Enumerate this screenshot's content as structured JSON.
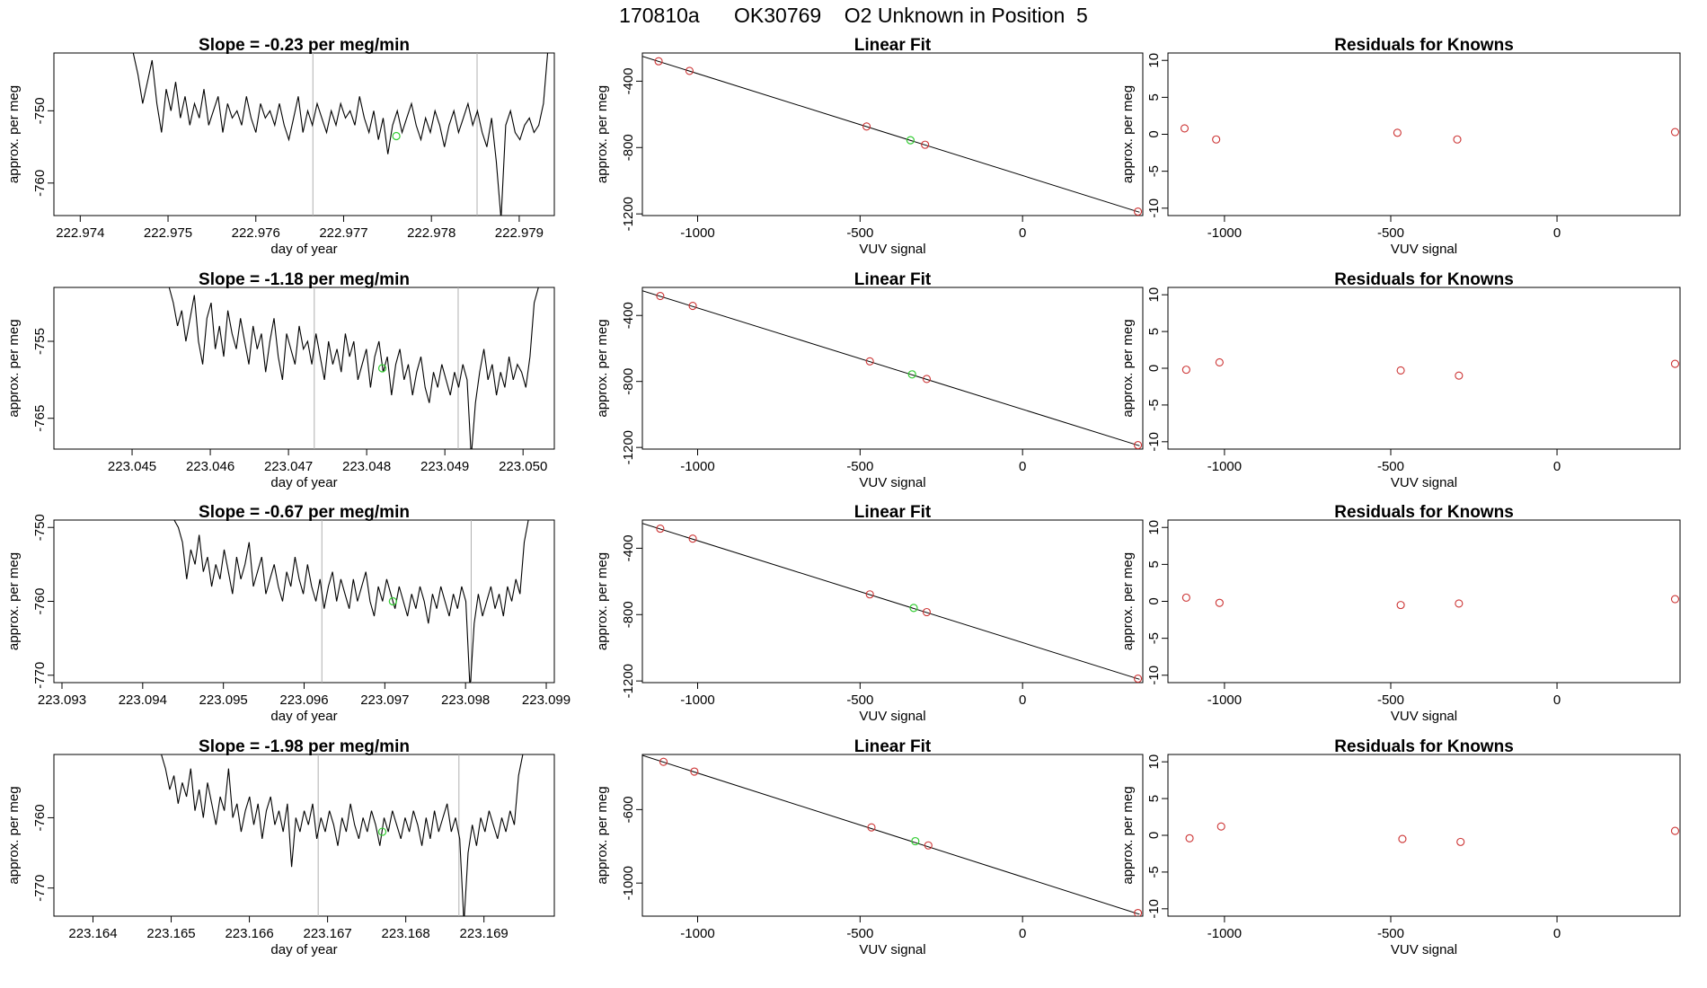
{
  "page": {
    "title": "170810a      OK30769    O2 Unknown in Position  5"
  },
  "chart_data": [
    {
      "type": "line",
      "row": 1,
      "role": "time-series",
      "title": "Slope =  -0.23  per meg/min",
      "xlabel": "day of year",
      "ylabel": "approx. per meg",
      "x_ticks": [
        "222.974",
        "222.975",
        "222.976",
        "222.977",
        "222.978",
        "222.979"
      ],
      "y_ticks": [
        "-750",
        "-760"
      ],
      "xlim": [
        222.9737,
        222.9794
      ],
      "ylim": [
        -764.5,
        -742
      ],
      "vlines": [
        222.97665,
        222.97852
      ],
      "highlight_point": [
        222.9776,
        -753.5
      ],
      "series": [
        {
          "name": "signal",
          "x_start": 222.97455,
          "x_end": 222.97933,
          "y_start": -741,
          "y_end": -741,
          "values": [
            -742,
            -745,
            -749,
            -746,
            -743,
            -749,
            -753,
            -747,
            -750,
            -746,
            -751,
            -748,
            -752,
            -749,
            -751,
            -747,
            -752,
            -750,
            -748,
            -753,
            -749,
            -751,
            -750,
            -752,
            -748,
            -751,
            -753,
            -749,
            -751,
            -750,
            -752,
            -749,
            -752,
            -754,
            -751,
            -748,
            -753,
            -750,
            -752,
            -749,
            -751,
            -753,
            -750,
            -752,
            -749,
            -751,
            -750,
            -752,
            -748,
            -751,
            -753,
            -750,
            -754,
            -751,
            -756,
            -752,
            -750,
            -753,
            -751,
            -749,
            -752,
            -754,
            -751,
            -753,
            -750,
            -752,
            -755,
            -752,
            -750,
            -753,
            -751,
            -749,
            -752,
            -750,
            -753,
            -755,
            -751,
            -757,
            -765,
            -752,
            -750,
            -753,
            -754,
            -752,
            -751,
            -753,
            -752,
            -749
          ]
        }
      ]
    },
    {
      "type": "scatter",
      "row": 1,
      "role": "linear-fit",
      "title": "Linear Fit",
      "xlabel": "VUV signal",
      "ylabel": "approx. per meg",
      "x_ticks": [
        "-1000",
        "-500",
        "0"
      ],
      "y_ticks": [
        "-400",
        "-800",
        "-1200"
      ],
      "xlim": [
        -1170,
        370
      ],
      "ylim": [
        -1210,
        -230
      ],
      "fit_line": [
        [
          -1170,
          -250
        ],
        [
          360,
          -1190
        ]
      ],
      "points": [
        {
          "x": -1120,
          "y": -280
        },
        {
          "x": -1025,
          "y": -338
        },
        {
          "x": -480,
          "y": -673
        },
        {
          "x": -300,
          "y": -783
        },
        {
          "x": 355,
          "y": -1186
        }
      ],
      "highlight_point": {
        "x": -345,
        "y": -756
      }
    },
    {
      "type": "scatter",
      "row": 1,
      "role": "residuals",
      "title": "Residuals for Knowns",
      "xlabel": "VUV signal",
      "ylabel": "approx. per meg",
      "x_ticks": [
        "-1000",
        "-500",
        "0"
      ],
      "y_ticks": [
        "10",
        "5",
        "0",
        "-5",
        "-10"
      ],
      "xlim": [
        -1170,
        370
      ],
      "ylim": [
        -11,
        11
      ],
      "points": [
        {
          "x": -1120,
          "y": 0.8
        },
        {
          "x": -1025,
          "y": -0.7
        },
        {
          "x": -480,
          "y": 0.2
        },
        {
          "x": -300,
          "y": -0.7
        },
        {
          "x": 355,
          "y": 0.3
        }
      ]
    },
    {
      "type": "line",
      "row": 2,
      "role": "time-series",
      "title": "Slope =  -1.18  per meg/min",
      "xlabel": "day of year",
      "ylabel": "approx. per meg",
      "x_ticks": [
        "223.045",
        "223.046",
        "223.047",
        "223.048",
        "223.049",
        "223.050"
      ],
      "y_ticks": [
        "-755",
        "-765"
      ],
      "xlim": [
        223.044,
        223.0504
      ],
      "ylim": [
        -769,
        -748
      ],
      "vlines": [
        223.04733,
        223.04917
      ],
      "highlight_point": [
        223.0482,
        -758.5
      ],
      "series": [
        {
          "name": "signal",
          "x_start": 223.04542,
          "x_end": 223.05025,
          "y_start": -747,
          "y_end": -747,
          "values": [
            -748,
            -750,
            -753,
            -751,
            -755,
            -752,
            -749,
            -755,
            -758,
            -752,
            -750,
            -756,
            -753,
            -757,
            -751,
            -754,
            -756,
            -752,
            -755,
            -758,
            -753,
            -756,
            -754,
            -759,
            -755,
            -752,
            -757,
            -760,
            -754,
            -756,
            -758,
            -753,
            -756,
            -755,
            -758,
            -754,
            -757,
            -760,
            -755,
            -758,
            -756,
            -759,
            -754,
            -757,
            -755,
            -760,
            -758,
            -756,
            -761,
            -757,
            -755,
            -759,
            -757,
            -762,
            -758,
            -756,
            -760,
            -758,
            -762,
            -759,
            -757,
            -761,
            -763,
            -759,
            -761,
            -758,
            -760,
            -762,
            -759,
            -761,
            -758,
            -760,
            -770,
            -763,
            -759,
            -756,
            -760,
            -758,
            -762,
            -759,
            -761,
            -757,
            -760,
            -758,
            -759,
            -761,
            -757,
            -750,
            -748
          ]
        }
      ]
    },
    {
      "type": "scatter",
      "row": 2,
      "role": "linear-fit",
      "title": "Linear Fit",
      "xlabel": "VUV signal",
      "ylabel": "approx. per meg",
      "x_ticks": [
        "-1000",
        "-500",
        "0"
      ],
      "y_ticks": [
        "-400",
        "-800",
        "-1200"
      ],
      "xlim": [
        -1170,
        370
      ],
      "ylim": [
        -1210,
        -230
      ],
      "fit_line": [
        [
          -1170,
          -250
        ],
        [
          360,
          -1190
        ]
      ],
      "points": [
        {
          "x": -1115,
          "y": -282
        },
        {
          "x": -1015,
          "y": -342
        },
        {
          "x": -470,
          "y": -678
        },
        {
          "x": -295,
          "y": -785
        },
        {
          "x": 355,
          "y": -1186
        }
      ],
      "highlight_point": {
        "x": -340,
        "y": -757
      }
    },
    {
      "type": "scatter",
      "row": 2,
      "role": "residuals",
      "title": "Residuals for Knowns",
      "xlabel": "VUV signal",
      "ylabel": "approx. per meg",
      "x_ticks": [
        "-1000",
        "-500",
        "0"
      ],
      "y_ticks": [
        "10",
        "5",
        "0",
        "-5",
        "-10"
      ],
      "xlim": [
        -1170,
        370
      ],
      "ylim": [
        -11,
        11
      ],
      "points": [
        {
          "x": -1115,
          "y": -0.2
        },
        {
          "x": -1015,
          "y": 0.8
        },
        {
          "x": -470,
          "y": -0.3
        },
        {
          "x": -295,
          "y": -1.0
        },
        {
          "x": 355,
          "y": 0.6
        }
      ]
    },
    {
      "type": "line",
      "row": 3,
      "role": "time-series",
      "title": "Slope =  -0.67  per meg/min",
      "xlabel": "day of year",
      "ylabel": "approx. per meg",
      "x_ticks": [
        "223.093",
        "223.094",
        "223.095",
        "223.096",
        "223.097",
        "223.098",
        "223.099"
      ],
      "y_ticks": [
        "-750",
        "-760",
        "-770"
      ],
      "xlim": [
        223.0929,
        223.0991
      ],
      "ylim": [
        -771,
        -749
      ],
      "vlines": [
        223.09622,
        223.09807
      ],
      "highlight_point": [
        223.0971,
        -760
      ],
      "series": [
        {
          "name": "signal",
          "x_start": 223.09439,
          "x_end": 223.09883,
          "y_start": -749,
          "y_end": -749,
          "values": [
            -750,
            -752,
            -757,
            -753,
            -755,
            -751,
            -756,
            -754,
            -758,
            -755,
            -757,
            -753,
            -756,
            -759,
            -754,
            -757,
            -755,
            -752,
            -758,
            -756,
            -754,
            -759,
            -757,
            -755,
            -758,
            -760,
            -756,
            -758,
            -754,
            -757,
            -759,
            -755,
            -758,
            -760,
            -757,
            -761,
            -758,
            -756,
            -760,
            -757,
            -759,
            -761,
            -757,
            -760,
            -758,
            -756,
            -760,
            -762,
            -758,
            -760,
            -757,
            -759,
            -761,
            -758,
            -760,
            -762,
            -759,
            -761,
            -758,
            -760,
            -763,
            -759,
            -761,
            -758,
            -760,
            -762,
            -759,
            -761,
            -758,
            -760,
            -772,
            -763,
            -759,
            -762,
            -760,
            -758,
            -761,
            -759,
            -762,
            -758,
            -760,
            -757,
            -759,
            -752,
            -749
          ]
        }
      ]
    },
    {
      "type": "scatter",
      "row": 3,
      "role": "linear-fit",
      "title": "Linear Fit",
      "xlabel": "VUV signal",
      "ylabel": "approx. per meg",
      "x_ticks": [
        "-1000",
        "-500",
        "0"
      ],
      "y_ticks": [
        "-400",
        "-800",
        "-1200"
      ],
      "xlim": [
        -1170,
        370
      ],
      "ylim": [
        -1210,
        -230
      ],
      "fit_line": [
        [
          -1170,
          -250
        ],
        [
          360,
          -1190
        ]
      ],
      "points": [
        {
          "x": -1115,
          "y": -282
        },
        {
          "x": -1015,
          "y": -342
        },
        {
          "x": -470,
          "y": -678
        },
        {
          "x": -295,
          "y": -785
        },
        {
          "x": 355,
          "y": -1186
        }
      ],
      "highlight_point": {
        "x": -335,
        "y": -760
      }
    },
    {
      "type": "scatter",
      "row": 3,
      "role": "residuals",
      "title": "Residuals for Knowns",
      "xlabel": "VUV signal",
      "ylabel": "approx. per meg",
      "x_ticks": [
        "-1000",
        "-500",
        "0"
      ],
      "y_ticks": [
        "10",
        "5",
        "0",
        "-5",
        "-10"
      ],
      "xlim": [
        -1170,
        370
      ],
      "ylim": [
        -11,
        11
      ],
      "points": [
        {
          "x": -1115,
          "y": 0.5
        },
        {
          "x": -1015,
          "y": -0.2
        },
        {
          "x": -470,
          "y": -0.5
        },
        {
          "x": -295,
          "y": -0.3
        },
        {
          "x": 355,
          "y": 0.3
        }
      ]
    },
    {
      "type": "line",
      "row": 4,
      "role": "time-series",
      "title": "Slope =  -1.98  per meg/min",
      "xlabel": "day of year",
      "ylabel": "approx. per meg",
      "x_ticks": [
        "223.164",
        "223.165",
        "223.166",
        "223.167",
        "223.168",
        "223.169"
      ],
      "y_ticks": [
        "-760",
        "-770"
      ],
      "xlim": [
        223.1635,
        223.1699
      ],
      "ylim": [
        -774,
        -751
      ],
      "vlines": [
        223.16688,
        223.16868
      ],
      "highlight_point": [
        223.1677,
        -762
      ],
      "series": [
        {
          "name": "signal",
          "x_start": 223.16482,
          "x_end": 223.16955,
          "y_start": -750,
          "y_end": -750,
          "values": [
            -751,
            -753,
            -756,
            -754,
            -758,
            -755,
            -757,
            -753,
            -759,
            -756,
            -760,
            -755,
            -758,
            -761,
            -757,
            -759,
            -753,
            -760,
            -758,
            -762,
            -759,
            -757,
            -761,
            -758,
            -763,
            -759,
            -757,
            -761,
            -759,
            -762,
            -758,
            -767,
            -760,
            -762,
            -759,
            -761,
            -758,
            -763,
            -760,
            -762,
            -759,
            -761,
            -764,
            -760,
            -762,
            -758,
            -761,
            -763,
            -760,
            -762,
            -759,
            -761,
            -764,
            -760,
            -762,
            -759,
            -761,
            -763,
            -760,
            -762,
            -759,
            -761,
            -764,
            -760,
            -763,
            -759,
            -762,
            -760,
            -758,
            -762,
            -760,
            -763,
            -775,
            -765,
            -761,
            -764,
            -760,
            -762,
            -759,
            -761,
            -763,
            -760,
            -762,
            -759,
            -761,
            -754,
            -751
          ]
        }
      ]
    },
    {
      "type": "scatter",
      "row": 4,
      "role": "linear-fit",
      "title": "Linear Fit",
      "xlabel": "VUV signal",
      "ylabel": "approx. per meg",
      "x_ticks": [
        "-1000",
        "-500",
        "0"
      ],
      "y_ticks": [
        "-600",
        "-1000"
      ],
      "xlim": [
        -1170,
        370
      ],
      "ylim": [
        -1180,
        -300
      ],
      "fit_line": [
        [
          -1170,
          -305
        ],
        [
          360,
          -1170
        ]
      ],
      "points": [
        {
          "x": -1105,
          "y": -340
        },
        {
          "x": -1010,
          "y": -393
        },
        {
          "x": -465,
          "y": -697
        },
        {
          "x": -290,
          "y": -795
        },
        {
          "x": 355,
          "y": -1163
        }
      ],
      "highlight_point": {
        "x": -330,
        "y": -772
      }
    },
    {
      "type": "scatter",
      "row": 4,
      "role": "residuals",
      "title": "Residuals for Knowns",
      "xlabel": "VUV signal",
      "ylabel": "approx. per meg",
      "x_ticks": [
        "-1000",
        "-500",
        "0"
      ],
      "y_ticks": [
        "10",
        "5",
        "0",
        "-5",
        "-10"
      ],
      "xlim": [
        -1170,
        370
      ],
      "ylim": [
        -11,
        11
      ],
      "points": [
        {
          "x": -1105,
          "y": -0.4
        },
        {
          "x": -1010,
          "y": 1.2
        },
        {
          "x": -465,
          "y": -0.5
        },
        {
          "x": -290,
          "y": -0.9
        },
        {
          "x": 355,
          "y": 0.6
        }
      ]
    }
  ]
}
